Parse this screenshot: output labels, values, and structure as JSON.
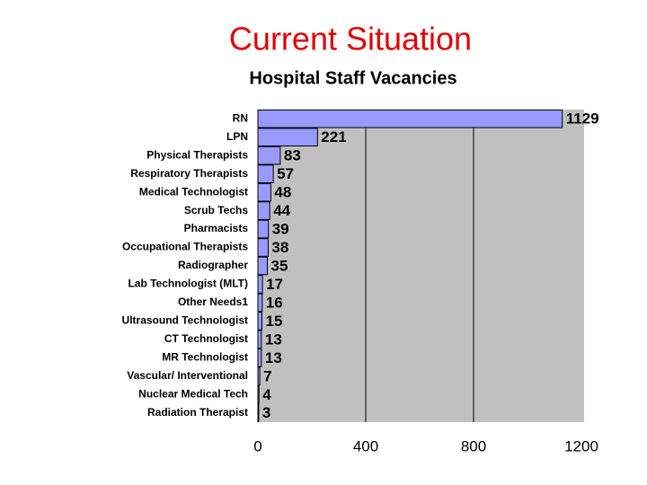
{
  "chart_data": {
    "type": "bar",
    "orientation": "horizontal",
    "title": "Current Situation",
    "subtitle": "Hospital Staff Vacancies",
    "categories": [
      "RN",
      "LPN",
      "Physical Therapists",
      "Respiratory Therapists",
      "Medical Technologist",
      "Scrub Techs",
      "Pharmacists",
      "Occupational Therapists",
      "Radiographer",
      "Lab Technologist (MLT)",
      "Other Needs1",
      "Ultrasound Technologist",
      "CT Technologist",
      "MR Technologist",
      "Vascular/ Interventional",
      "Nuclear Medical Tech",
      "Radiation Therapist"
    ],
    "values": [
      1129,
      221,
      83,
      57,
      48,
      44,
      39,
      38,
      35,
      17,
      16,
      15,
      13,
      13,
      7,
      4,
      3
    ],
    "color": "#9999ff",
    "plot_background": "#c0c0c0",
    "title_color": "#e00000",
    "xlim": [
      0,
      1200
    ],
    "xticks": [
      0,
      400,
      800,
      1200
    ],
    "grid": true
  }
}
